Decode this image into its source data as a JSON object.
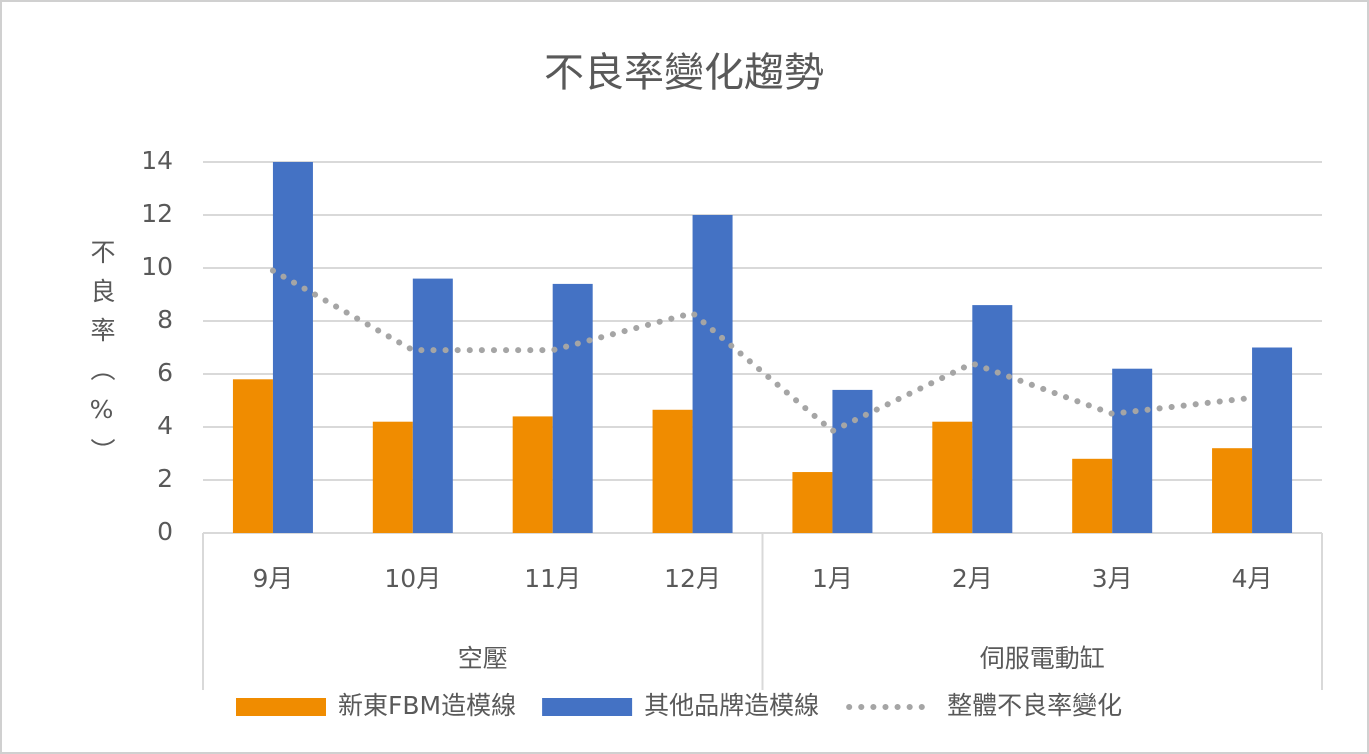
{
  "chart_data": {
    "type": "bar",
    "title": "不良率變化趨勢",
    "y_label": "不良率（%）",
    "categories": [
      "9月",
      "10月",
      "11月",
      "12月",
      "1月",
      "2月",
      "3月",
      "4月"
    ],
    "groups": [
      "空壓",
      "伺服電動缸"
    ],
    "series": [
      {
        "name": "新東FBM造模線",
        "type": "bar",
        "color": "#f08c00",
        "values": [
          5.8,
          4.2,
          4.4,
          4.65,
          2.3,
          4.2,
          2.8,
          3.2
        ]
      },
      {
        "name": "其他品牌造模線",
        "type": "bar",
        "color": "#4472c4",
        "values": [
          14,
          9.6,
          9.4,
          12,
          5.4,
          8.6,
          6.2,
          7.0
        ]
      },
      {
        "name": "整體不良率變化",
        "type": "line",
        "style": "dotted",
        "color": "#a5a5a5",
        "values": [
          9.9,
          6.9,
          6.9,
          8.3,
          3.85,
          6.4,
          4.5,
          5.1
        ]
      }
    ],
    "ylim": [
      0,
      14
    ],
    "yticks": [
      0,
      2,
      4,
      6,
      8,
      10,
      12,
      14
    ],
    "grid": true,
    "legend": "bottom"
  }
}
